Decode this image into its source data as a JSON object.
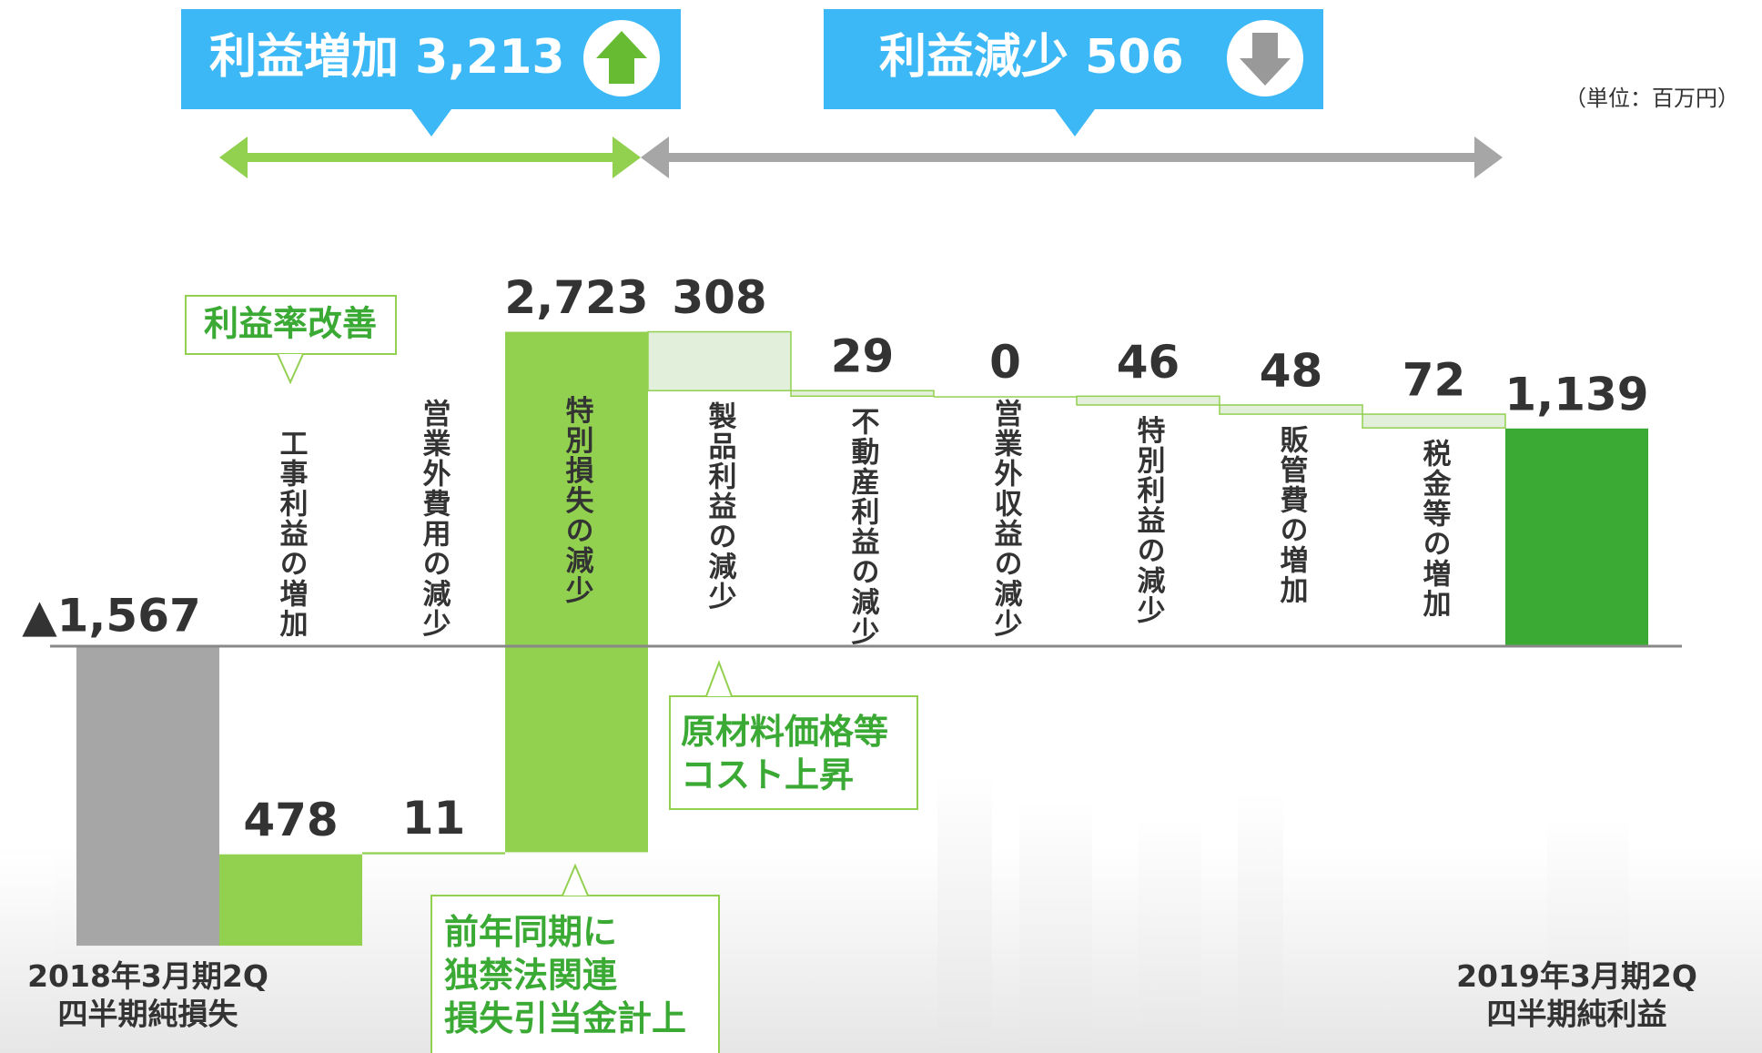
{
  "chart_data": {
    "type": "waterfall",
    "banners": [
      "利益増加 3,213",
      "利益減少 506"
    ],
    "unit_label": "（単位：百万円）",
    "categories": [
      "2018年3月期2Q\n四半期純損失",
      "工事利益の増加",
      "営業外費用の減少",
      "特別損失の減少",
      "製品利益の減少",
      "不動産利益の減少",
      "営業外収益の減少",
      "特別利益の減少",
      "販管費の増加",
      "税金等の増加",
      "2019年3月期2Q\n四半期純利益"
    ],
    "values": [
      -1567,
      478,
      11,
      2723,
      -308,
      -29,
      0,
      -46,
      -48,
      -72,
      1139
    ],
    "value_labels": [
      "▲1,567",
      "478",
      "11",
      "2,723",
      "308",
      "29",
      "0",
      "46",
      "48",
      "72",
      "1,139"
    ],
    "annotations": [
      "利益率改善",
      "原材料価格等\nコスト上昇",
      "前年同期に\n独禁法関連\n損失引当金計上"
    ],
    "colors": {
      "start": "#a6a6a6",
      "increase": "#92d050",
      "decrease": "#e2efda",
      "total": "#3aaa35"
    }
  }
}
